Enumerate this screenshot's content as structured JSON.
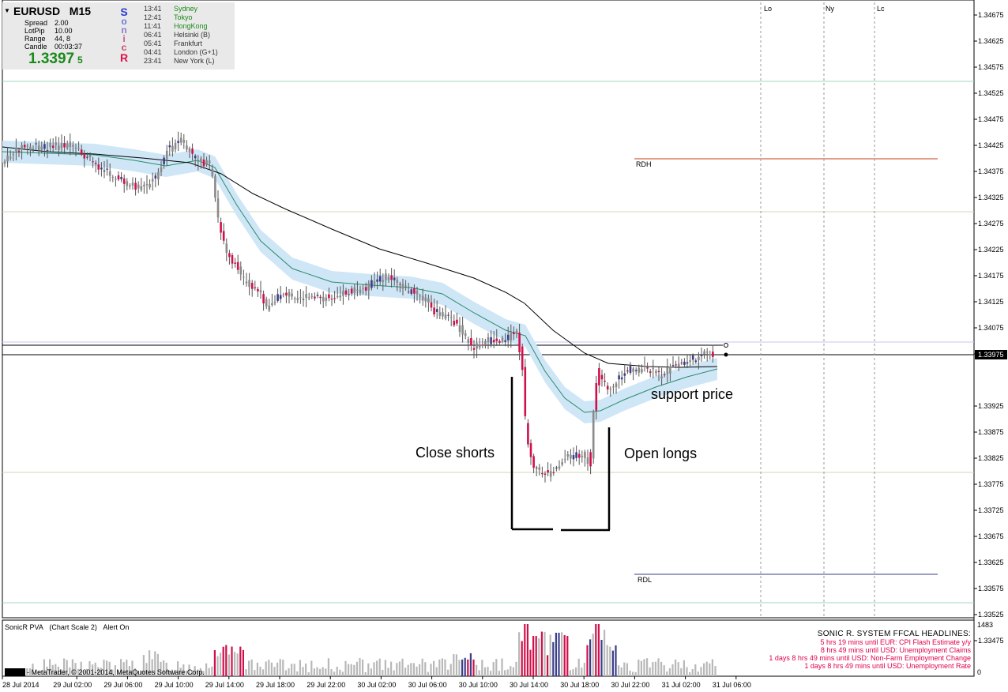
{
  "header": {
    "symbol": "EURUSD",
    "timeframe": "M15"
  },
  "info": {
    "spread_label": "Spread",
    "spread": "2.00",
    "lotpip_label": "LotPip",
    "lotpip": "10.00",
    "range_label": "Range",
    "range": "44, 8",
    "candle_label": "Candle",
    "candle": "00:03:37",
    "price_big": "1.3397",
    "price_small": "5",
    "logo_letters": [
      "S",
      "o",
      "n",
      "i",
      "c",
      "R"
    ]
  },
  "sessions": [
    {
      "time": "13:41",
      "name": "Sydney",
      "color": "#1a8a1a"
    },
    {
      "time": "12:41",
      "name": "Tokyo",
      "color": "#1a8a1a"
    },
    {
      "time": "11:41",
      "name": "HongKong",
      "color": "#1a8a1a"
    },
    {
      "time": "06:41",
      "name": "Helsinki  (B)",
      "color": "#333333"
    },
    {
      "time": "05:41",
      "name": "Frankfurt",
      "color": "#333333"
    },
    {
      "time": "04:41",
      "name": "London  (G+1)",
      "color": "#333333"
    },
    {
      "time": "23:41",
      "name": "New York  (L)",
      "color": "#333333"
    }
  ],
  "session_markers": [
    "Lo",
    "Ny",
    "Lc"
  ],
  "levels": {
    "rdh": "RDH",
    "rdl": "RDL"
  },
  "annotations": {
    "close_shorts": "Close shorts",
    "open_longs": "Open longs",
    "support": "support price"
  },
  "price_axis": [
    "1.34675",
    "1.34625",
    "1.34575",
    "1.34525",
    "1.34475",
    "1.34425",
    "1.34375",
    "1.34325",
    "1.34275",
    "1.34225",
    "1.34175",
    "1.34125",
    "1.34075",
    "1.34025",
    "1.33925",
    "1.33875",
    "1.33825",
    "1.33775",
    "1.33725",
    "1.33675",
    "1.33625",
    "1.33575",
    "1.33525",
    "1.33475"
  ],
  "current_price": "1.33975",
  "time_axis": [
    "28 Jul 2014",
    "29 Jul 02:00",
    "29 Jul 06:00",
    "29 Jul 10:00",
    "29 Jul 14:00",
    "29 Jul 18:00",
    "29 Jul 22:00",
    "30 Jul 02:00",
    "30 Jul 06:00",
    "30 Jul 10:00",
    "30 Jul 14:00",
    "30 Jul 18:00",
    "30 Jul 22:00",
    "31 Jul 02:00",
    "31 Jul 06:00"
  ],
  "indicator": {
    "title": "SonicR PVA",
    "scale": "(Chart Scale 2)",
    "alert": "Alert On",
    "max": "1483",
    "min": "0",
    "copyright": "- MetaTrader, © 2001-2014, MetaQuotes Software Corp."
  },
  "headlines": {
    "title": "SONIC R. SYSTEM  FFCAL HEADLINES:",
    "items": [
      "5 hrs 19 mins until EUR: CPI Flash Estimate y/y",
      "8 hrs 49 mins until USD: Unemployment Claims",
      "1 days 8 hrs 49 mins until USD: Non-Farm Employment Change",
      "1 days 8 hrs 49 mins until USD: Unemployment Rate"
    ],
    "color": "#e0004a"
  },
  "colors": {
    "bull": "#3a3f8a",
    "bear": "#d0104a",
    "dragon": "#cfe6f7",
    "ema": "#2a8a6a",
    "sma": "#000000"
  }
}
